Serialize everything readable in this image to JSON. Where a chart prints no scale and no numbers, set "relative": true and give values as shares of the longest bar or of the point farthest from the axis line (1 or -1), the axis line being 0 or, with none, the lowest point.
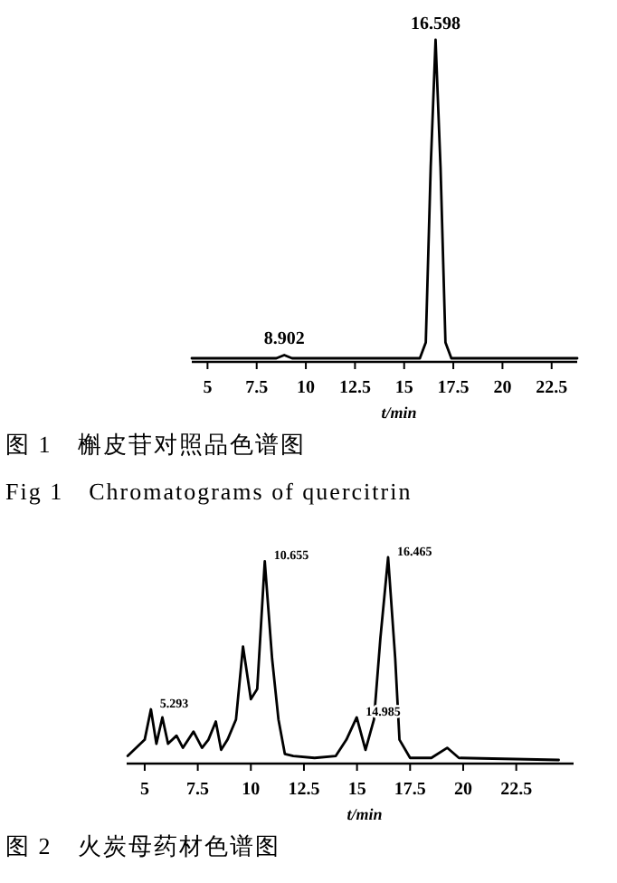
{
  "chart_data": [
    {
      "type": "line",
      "relative": true,
      "xlabel": "t/min",
      "xlim": [
        4.2,
        23.8
      ],
      "xticks": [
        5,
        7.5,
        10,
        12.5,
        15,
        17.5,
        20,
        22.5
      ],
      "grid": false,
      "marker": "none",
      "line_style": "solid",
      "series": [
        {
          "color": "#000000",
          "x": [
            4.2,
            8.5,
            8.902,
            9.3,
            15.8,
            16.1,
            16.35,
            16.598,
            16.85,
            17.1,
            17.4,
            23.8
          ],
          "values": [
            0,
            0,
            0.01,
            0,
            0,
            0.05,
            0.6,
            1,
            0.6,
            0.05,
            0,
            0
          ]
        }
      ],
      "annotations": [
        {
          "text": "8.902",
          "x": 8.902,
          "y": 0.01
        },
        {
          "text": "16.598",
          "x": 16.598,
          "y": 1
        },
        "图 1　槲皮苷对照品色谱图",
        "Fig 1　Chromatograms of quercitrin"
      ]
    },
    {
      "type": "line",
      "relative": true,
      "xlabel": "t/min",
      "xlim": [
        4.15,
        25.2
      ],
      "xticks": [
        5,
        7.5,
        10,
        12.5,
        15,
        17.5,
        20,
        22.5
      ],
      "grid": false,
      "marker": "none",
      "line_style": "solid",
      "series": [
        {
          "color": "#000000",
          "x": [
            4.2,
            5.0,
            5.293,
            5.55,
            5.832,
            6.1,
            6.5,
            6.8,
            7.3,
            7.7,
            8.0,
            8.349,
            8.6,
            8.9,
            9.3,
            9.63,
            10.0,
            10.3,
            10.655,
            11.0,
            11.3,
            11.6,
            12.0,
            13.0,
            14.0,
            14.5,
            14.985,
            15.4,
            15.8,
            16.1,
            16.465,
            16.8,
            17.0,
            17.5,
            18.5,
            19.247,
            19.8,
            24.5
          ],
          "values": [
            0.02,
            0.1,
            0.25,
            0.08,
            0.21,
            0.08,
            0.12,
            0.06,
            0.14,
            0.06,
            0.1,
            0.19,
            0.05,
            0.1,
            0.2,
            0.56,
            0.3,
            0.35,
            0.98,
            0.5,
            0.2,
            0.03,
            0.02,
            0.01,
            0.02,
            0.1,
            0.21,
            0.05,
            0.2,
            0.6,
            1,
            0.5,
            0.1,
            0.01,
            0.01,
            0.06,
            0.01,
            0
          ]
        }
      ],
      "annotations": [
        {
          "text": "5.293",
          "x": 5.293,
          "y": 0.25
        },
        {
          "text": "10.655",
          "x": 10.655,
          "y": 0.98
        },
        {
          "text": "14.985",
          "x": 14.985,
          "y": 0.21
        },
        {
          "text": "16.465",
          "x": 16.465,
          "y": 1
        },
        "图 2　火炭母药材色谱图"
      ]
    }
  ]
}
